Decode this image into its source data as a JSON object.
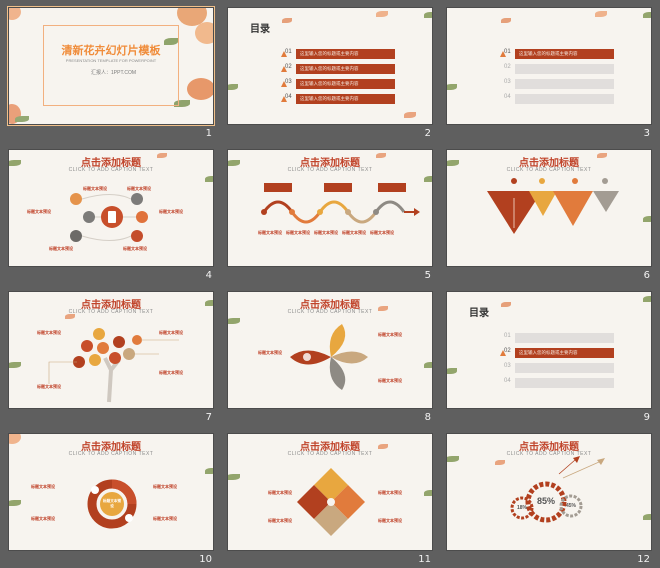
{
  "colors": {
    "accent": "#b2401f",
    "accent_light": "#e07b3f",
    "title_orange": "#f08c3a",
    "slide_bg": "#f7f4ef",
    "app_bg": "#5f5f5f",
    "beige": "#c9a87f",
    "grey": "#a39c93"
  },
  "slides": [
    {
      "number": "1",
      "title_cn": "清新花卉幻灯片模板",
      "subtitle_en": "PRESENTATION TEMPLATE FOR POWERPOINT",
      "reporter": "汇报人：1PPT.COM"
    },
    {
      "number": "2",
      "toc_title": "目录",
      "items": [
        {
          "idx": "01",
          "text": "这里输入您的标题或主要内容"
        },
        {
          "idx": "02",
          "text": "这里输入您的标题或主要内容"
        },
        {
          "idx": "03",
          "text": "这里输入您的标题或主要内容"
        },
        {
          "idx": "04",
          "text": "这里输入您的标题或主要内容"
        }
      ]
    },
    {
      "number": "3",
      "items": [
        {
          "idx": "01",
          "text": "这里输入您的标题或主要内容"
        },
        {
          "idx": "02",
          "text": ""
        },
        {
          "idx": "03",
          "text": ""
        },
        {
          "idx": "04",
          "text": ""
        }
      ]
    },
    {
      "number": "4",
      "title_cn": "点击添加标题",
      "title_en": "CLICK TO ADD CAPTION TEXT"
    },
    {
      "number": "5",
      "title_cn": "点击添加标题",
      "title_en": "CLICK TO ADD CAPTION TEXT"
    },
    {
      "number": "6",
      "title_cn": "点击添加标题",
      "title_en": "CLICK TO ADD CAPTION TEXT"
    },
    {
      "number": "7",
      "title_cn": "点击添加标题",
      "title_en": "CLICK TO ADD CAPTION TEXT"
    },
    {
      "number": "8",
      "title_cn": "点击添加标题",
      "title_en": "CLICK TO ADD CAPTION TEXT"
    },
    {
      "number": "9",
      "toc_title": "目录",
      "items": [
        {
          "idx": "01",
          "text": ""
        },
        {
          "idx": "02",
          "text": "这里输入您的标题或主要内容"
        },
        {
          "idx": "03",
          "text": ""
        },
        {
          "idx": "04",
          "text": ""
        }
      ]
    },
    {
      "number": "10",
      "title_cn": "点击添加标题",
      "title_en": "CLICK TO ADD CAPTION TEXT",
      "center_text": "标题文本预设"
    },
    {
      "number": "11",
      "title_cn": "点击添加标题",
      "title_en": "CLICK TO ADD CAPTION TEXT"
    },
    {
      "number": "12",
      "title_cn": "点击添加标题",
      "title_en": "CLICK TO ADD CAPTION TEXT",
      "gauges": [
        "18%",
        "85%",
        "45%"
      ]
    }
  ],
  "labels": {
    "text_preset": "标题文本预设",
    "body_line": "添加文本添加文本添加文本添加文本"
  }
}
